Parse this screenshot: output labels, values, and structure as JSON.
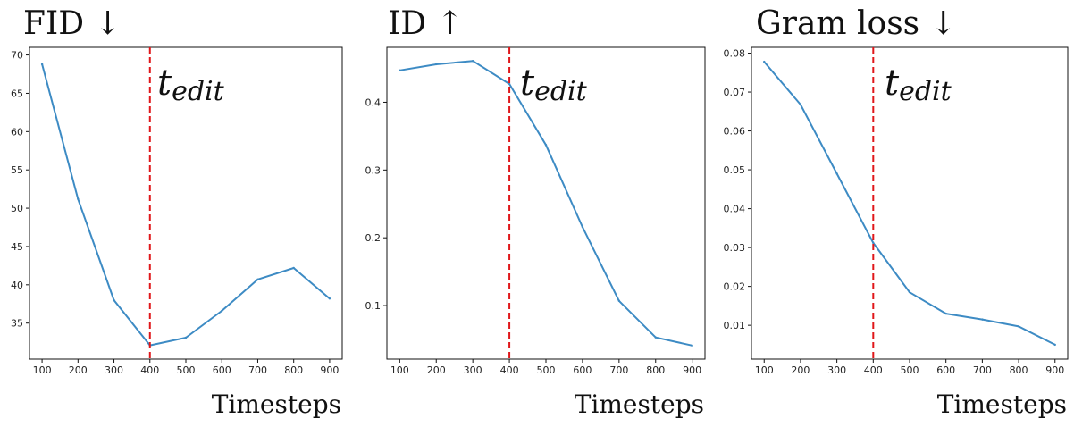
{
  "chart_data": [
    {
      "type": "line",
      "title": "FID ↓",
      "xlabel": "Timesteps",
      "ylabel": "",
      "x": [
        100,
        200,
        300,
        400,
        500,
        600,
        700,
        800,
        900
      ],
      "series": [
        {
          "values": [
            68.8,
            51.2,
            38.0,
            32.1,
            33.1,
            36.6,
            40.7,
            42.2,
            38.2
          ]
        }
      ],
      "xlim": [
        65,
        935
      ],
      "ylim": [
        30.3,
        71.0
      ],
      "xticks": [
        100,
        200,
        300,
        400,
        500,
        600,
        700,
        800,
        900
      ],
      "yticks": [
        35,
        40,
        45,
        50,
        55,
        60,
        65,
        70
      ],
      "marker": {
        "x": 400,
        "label_main": "t",
        "label_sub": "edit"
      }
    },
    {
      "type": "line",
      "title": "ID ↑",
      "xlabel": "Timesteps",
      "ylabel": "",
      "x": [
        100,
        200,
        300,
        400,
        500,
        600,
        700,
        800,
        900
      ],
      "series": [
        {
          "values": [
            0.447,
            0.456,
            0.461,
            0.427,
            0.337,
            0.216,
            0.107,
            0.053,
            0.041
          ]
        }
      ],
      "xlim": [
        65,
        935
      ],
      "ylim": [
        0.021,
        0.481
      ],
      "xticks": [
        100,
        200,
        300,
        400,
        500,
        600,
        700,
        800,
        900
      ],
      "yticks": [
        0.1,
        0.2,
        0.3,
        0.4
      ],
      "marker": {
        "x": 400,
        "label_main": "t",
        "label_sub": "edit"
      }
    },
    {
      "type": "line",
      "title": "Gram loss ↓",
      "xlabel": "Timesteps",
      "ylabel": "",
      "x": [
        100,
        200,
        300,
        400,
        500,
        600,
        700,
        800,
        900
      ],
      "series": [
        {
          "values": [
            0.0778,
            0.0668,
            0.049,
            0.0312,
            0.0185,
            0.013,
            0.0115,
            0.0097,
            0.005
          ]
        }
      ],
      "xlim": [
        65,
        935
      ],
      "ylim": [
        0.0013,
        0.0815
      ],
      "xticks": [
        100,
        200,
        300,
        400,
        500,
        600,
        700,
        800,
        900
      ],
      "yticks": [
        0.01,
        0.02,
        0.03,
        0.04,
        0.05,
        0.06,
        0.07,
        0.08
      ],
      "marker": {
        "x": 400,
        "label_main": "t",
        "label_sub": "edit"
      }
    }
  ],
  "colors": {
    "line": "#3d8bc4",
    "marker": "#e0171a",
    "axis": "#111111"
  }
}
